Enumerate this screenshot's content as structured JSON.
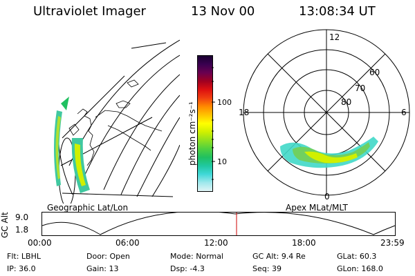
{
  "header": {
    "instrument": "Ultraviolet Imager",
    "date": "13 Nov 00",
    "time": "13:08:34 UT"
  },
  "left_panel": {
    "label": "Geographic Lat/Lon"
  },
  "right_panel": {
    "label": "Apex MLat/MLT",
    "mlt_labels": {
      "top": "12",
      "left": "18",
      "right": "6",
      "bottom": "0"
    },
    "lat_labels": [
      "60",
      "70",
      "80"
    ]
  },
  "colorbar": {
    "unit_label": "photon cm⁻²s⁻¹",
    "ticks": [
      "100",
      "10"
    ],
    "colors": [
      "#1a0030",
      "#3a0050",
      "#6a0050",
      "#a00020",
      "#dd1010",
      "#f04010",
      "#ff8a00",
      "#ffc400",
      "#ffff00",
      "#d0f000",
      "#90e020",
      "#50d040",
      "#20c060",
      "#20c8a0",
      "#40d8d8",
      "#a0e8ec",
      "#e0f4f6"
    ]
  },
  "timeline": {
    "y_axis_label": "GC Alt",
    "y_ticks": [
      "9.0",
      "1.8"
    ],
    "x_ticks": [
      "00:00",
      "06:00",
      "12:00",
      "18:00",
      "23:59"
    ],
    "current_time_color": "#cc0000"
  },
  "status": {
    "row1": [
      {
        "key": "Flt:",
        "value": "LBHL"
      },
      {
        "key": "Door:",
        "value": "Open"
      },
      {
        "key": "Mode:",
        "value": "Normal"
      },
      {
        "key": "GC Alt:",
        "value": "9.4 Re"
      },
      {
        "key": "GLat:",
        "value": "60.3"
      }
    ],
    "row2": [
      {
        "key": "IP:",
        "value": "36.0"
      },
      {
        "key": "Gain:",
        "value": "13"
      },
      {
        "key": "Dsp:",
        "value": "-4.3"
      },
      {
        "key": "Seq:",
        "value": "39"
      },
      {
        "key": "GLon:",
        "value": "168.0"
      }
    ]
  }
}
